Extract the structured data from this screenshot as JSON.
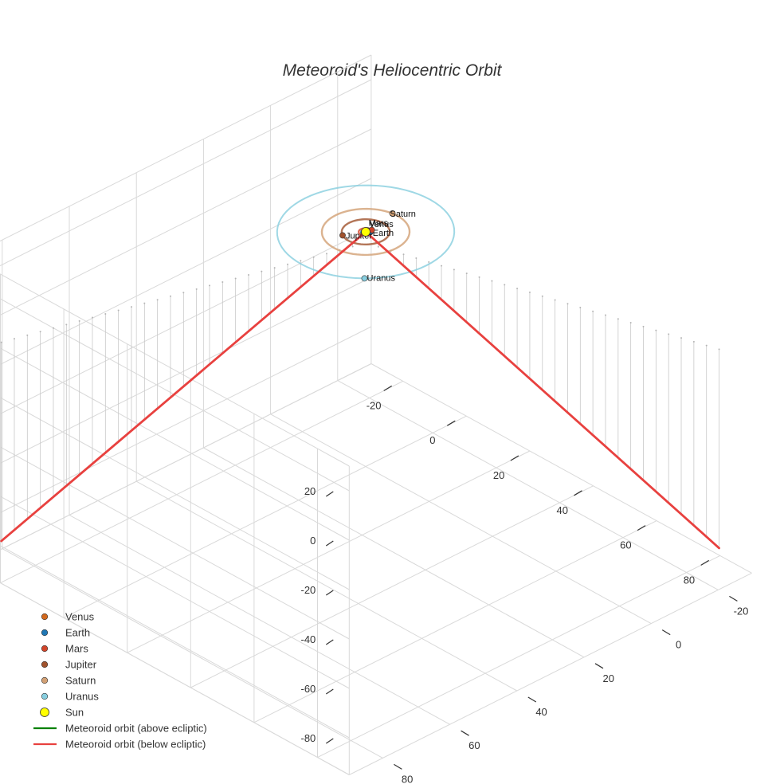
{
  "chart_data": {
    "type": "scatter3d",
    "title": "Meteoroid's Heliocentric Orbit",
    "axes": {
      "x": {
        "ticks": [
          -20,
          0,
          20,
          40,
          60,
          80
        ],
        "range": [
          -30,
          90
        ],
        "label": ""
      },
      "y": {
        "ticks": [
          -20,
          0,
          20,
          40,
          60,
          80
        ],
        "range": [
          -30,
          90
        ],
        "label": ""
      },
      "z": {
        "ticks": [
          20,
          0,
          -20,
          -40,
          -60,
          -80
        ],
        "range": [
          -95,
          30
        ],
        "label": ""
      },
      "grid": true
    },
    "legend_position": "bottom-left",
    "planets": [
      {
        "name": "Venus",
        "color": "#d2691e",
        "orbit_radius": 0.72
      },
      {
        "name": "Earth",
        "color": "#1f77b4",
        "orbit_radius": 1.0
      },
      {
        "name": "Mars",
        "color": "#d2452a",
        "orbit_radius": 1.52
      },
      {
        "name": "Jupiter",
        "color": "#a0522d",
        "orbit_radius": 5.2
      },
      {
        "name": "Saturn",
        "color": "#d2a074",
        "orbit_radius": 9.5
      },
      {
        "name": "Uranus",
        "color": "#87cedf",
        "orbit_radius": 19.2
      }
    ],
    "sun": {
      "name": "Sun",
      "color": "#ffff00"
    },
    "series": [
      {
        "name": "Meteoroid orbit (above ecliptic)",
        "color": "#008000",
        "points": []
      },
      {
        "name": "Meteoroid orbit (below ecliptic)",
        "color": "#e8413f",
        "segments": [
          {
            "x": [
              0,
              85
            ],
            "y": [
              0,
              -25
            ],
            "z": [
              0,
              -85
            ]
          },
          {
            "x": [
              0,
              -25
            ],
            "y": [
              0,
              85
            ],
            "z": [
              0,
              -85
            ]
          }
        ]
      }
    ]
  },
  "legend": {
    "items": [
      {
        "label": "Venus",
        "kind": "marker",
        "color": "#d2691e"
      },
      {
        "label": "Earth",
        "kind": "marker",
        "color": "#1f77b4"
      },
      {
        "label": "Mars",
        "kind": "marker",
        "color": "#d2452a"
      },
      {
        "label": "Jupiter",
        "kind": "marker",
        "color": "#a0522d"
      },
      {
        "label": "Saturn",
        "kind": "marker",
        "color": "#d2a074"
      },
      {
        "label": "Uranus",
        "kind": "marker",
        "color": "#87cedf"
      },
      {
        "label": "Sun",
        "kind": "sun",
        "color": "#ffff00"
      },
      {
        "label": "Meteoroid orbit (above ecliptic)",
        "kind": "line",
        "color": "#008000"
      },
      {
        "label": "Meteoroid orbit (below ecliptic)",
        "kind": "line",
        "color": "#e8413f"
      }
    ]
  }
}
